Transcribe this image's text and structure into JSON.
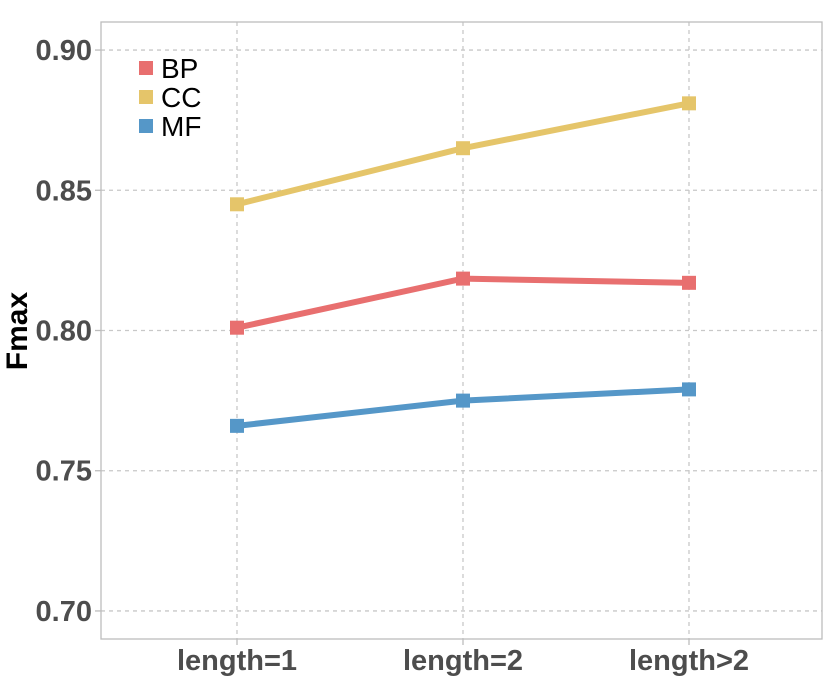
{
  "chart_data": {
    "type": "line",
    "title": "",
    "xlabel": "",
    "ylabel": "Fmax",
    "categories": [
      "length=1",
      "length=2",
      "length>2"
    ],
    "ylim": [
      0.69,
      0.91
    ],
    "yticks": [
      0.7,
      0.75,
      0.8,
      0.85,
      0.9
    ],
    "ytick_labels": [
      "0.70",
      "0.75",
      "0.80",
      "0.85",
      "0.90"
    ],
    "grid": true,
    "legend_position": "top-left",
    "series": [
      {
        "name": "BP",
        "color": "#e86f6f",
        "values": [
          0.801,
          0.8185,
          0.817
        ]
      },
      {
        "name": "CC",
        "color": "#e5c56a",
        "values": [
          0.845,
          0.865,
          0.881
        ]
      },
      {
        "name": "MF",
        "color": "#5597c8",
        "values": [
          0.766,
          0.775,
          0.779
        ]
      }
    ]
  }
}
